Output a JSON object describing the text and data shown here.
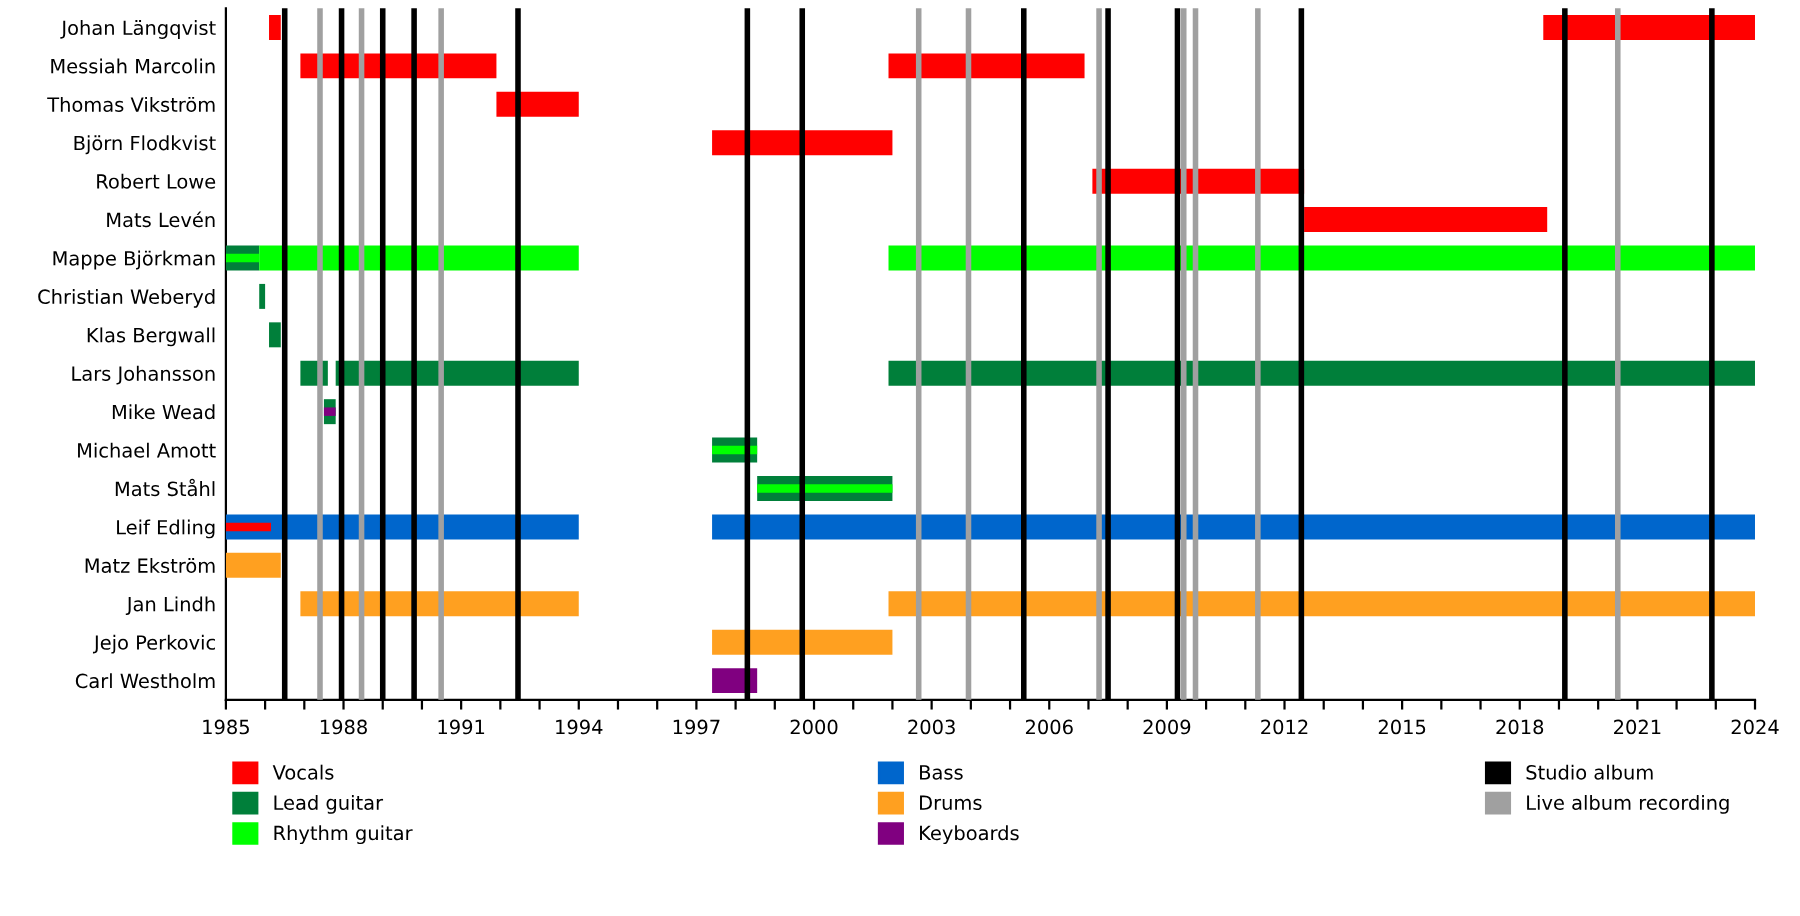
{
  "chart_data": {
    "type": "bar",
    "orientation": "horizontal",
    "categories": [
      "Johan Längqvist",
      "Messiah Marcolin",
      "Thomas Vikström",
      "Björn Flodkvist",
      "Robert Lowe",
      "Mats Levén",
      "Mappe Björkman",
      "Christian Weberyd",
      "Klas Bergwall",
      "Lars Johansson",
      "Mike Wead",
      "Michael Amott",
      "Mats Ståhl",
      "Leif Edling",
      "Matz Ekström",
      "Jan Lindh",
      "Jejo Perkovic",
      "Carl Westholm"
    ],
    "series": [
      {
        "name": "Vocals",
        "color": "#ff0000",
        "base": [
          1986.1,
          1986.9,
          1991.9,
          1997.4,
          2007.1,
          2012.5,
          null,
          null,
          null,
          null,
          null,
          null,
          null,
          null,
          null,
          null,
          null,
          null
        ],
        "values": [
          0.3,
          5.0,
          2.1,
          4.6,
          5.4,
          6.2,
          null,
          null,
          null,
          null,
          null,
          null,
          null,
          null,
          null,
          null,
          null,
          null
        ]
      },
      {
        "color": "#ff0000",
        "base": [
          2018.6,
          2001.9,
          null,
          null,
          null,
          null,
          null,
          null,
          null,
          null,
          null,
          null,
          null,
          null,
          null,
          null,
          null,
          null
        ],
        "values": [
          5.4,
          5.0,
          null,
          null,
          null,
          null,
          null,
          null,
          null,
          null,
          null,
          null,
          null,
          null,
          null,
          null,
          null,
          null
        ]
      },
      {
        "name": "Lead guitar",
        "color": "#007f3a",
        "base": [
          null,
          null,
          null,
          null,
          null,
          null,
          1985,
          1985.85,
          1986.1,
          1986.9,
          1987.5,
          1997.4,
          1998.55,
          null,
          null,
          null,
          null,
          null
        ],
        "values": [
          null,
          null,
          null,
          null,
          null,
          null,
          0.85,
          0.15,
          0.3,
          0.7,
          0.3,
          1.15,
          3.45,
          null,
          null,
          null,
          null,
          null
        ]
      },
      {
        "color": "#007f3a",
        "base": [
          null,
          null,
          null,
          null,
          null,
          null,
          null,
          null,
          null,
          1987.8,
          null,
          null,
          null,
          null,
          null,
          null,
          null,
          null
        ],
        "values": [
          null,
          null,
          null,
          null,
          null,
          null,
          null,
          null,
          null,
          6.2,
          null,
          null,
          null,
          null,
          null,
          null,
          null,
          null
        ]
      },
      {
        "color": "#007f3a",
        "base": [
          null,
          null,
          null,
          null,
          null,
          null,
          null,
          null,
          null,
          2001.9,
          null,
          null,
          null,
          null,
          null,
          null,
          null,
          null
        ],
        "values": [
          null,
          null,
          null,
          null,
          null,
          null,
          null,
          null,
          null,
          22.1,
          null,
          null,
          null,
          null,
          null,
          null,
          null,
          null
        ]
      },
      {
        "name": "Rhythm guitar",
        "color": "#00ff00",
        "base": [
          null,
          null,
          null,
          null,
          null,
          null,
          1985.85,
          null,
          null,
          null,
          null,
          1997.4,
          1998.55,
          null,
          null,
          null,
          null,
          null
        ],
        "values": [
          null,
          null,
          null,
          null,
          null,
          null,
          8.15,
          null,
          null,
          null,
          null,
          1.15,
          3.45,
          null,
          null,
          null,
          null,
          null
        ]
      },
      {
        "color": "#00ff00",
        "base": [
          null,
          null,
          null,
          null,
          null,
          null,
          2001.9,
          null,
          null,
          null,
          null,
          null,
          null,
          null,
          null,
          null,
          null,
          null
        ],
        "values": [
          null,
          null,
          null,
          null,
          null,
          null,
          22.1,
          null,
          null,
          null,
          null,
          null,
          null,
          null,
          null,
          null,
          null,
          null
        ]
      },
      {
        "color": "#00ff00",
        "base": [
          null,
          null,
          null,
          null,
          null,
          null,
          1985,
          null,
          null,
          null,
          null,
          null,
          null,
          null,
          null,
          null,
          null,
          null
        ],
        "values": [
          null,
          null,
          null,
          null,
          null,
          null,
          0.85,
          null,
          null,
          null,
          null,
          null,
          null,
          null,
          null,
          null,
          null,
          null
        ]
      },
      {
        "name": "Bass",
        "color": "#0066cc",
        "base": [
          null,
          null,
          null,
          null,
          null,
          null,
          null,
          null,
          null,
          null,
          null,
          null,
          null,
          1985,
          null,
          null,
          null,
          null
        ],
        "values": [
          null,
          null,
          null,
          null,
          null,
          null,
          null,
          null,
          null,
          null,
          null,
          null,
          null,
          9.0,
          null,
          null,
          null,
          null
        ]
      },
      {
        "color": "#0066cc",
        "base": [
          null,
          null,
          null,
          null,
          null,
          null,
          null,
          null,
          null,
          null,
          null,
          null,
          null,
          1997.4,
          null,
          null,
          null,
          null
        ],
        "values": [
          null,
          null,
          null,
          null,
          null,
          null,
          null,
          null,
          null,
          null,
          null,
          null,
          null,
          26.6,
          null,
          null,
          null,
          null
        ]
      },
      {
        "color": "#ff0000",
        "base": [
          null,
          null,
          null,
          null,
          null,
          null,
          null,
          null,
          null,
          null,
          null,
          null,
          null,
          1985,
          null,
          null,
          null,
          null
        ],
        "values": [
          null,
          null,
          null,
          null,
          null,
          null,
          null,
          null,
          null,
          null,
          null,
          null,
          null,
          1.15,
          null,
          null,
          null,
          null
        ]
      },
      {
        "name": "Drums",
        "color": "#ffa020",
        "base": [
          null,
          null,
          null,
          null,
          null,
          null,
          null,
          null,
          null,
          null,
          null,
          null,
          null,
          null,
          1985,
          1986.9,
          1997.4,
          null
        ],
        "values": [
          null,
          null,
          null,
          null,
          null,
          null,
          null,
          null,
          null,
          null,
          null,
          null,
          null,
          null,
          1.4,
          7.1,
          4.6,
          null
        ]
      },
      {
        "color": "#ffa020",
        "base": [
          null,
          null,
          null,
          null,
          null,
          null,
          null,
          null,
          null,
          null,
          null,
          null,
          null,
          null,
          null,
          2001.9,
          null,
          null
        ],
        "values": [
          null,
          null,
          null,
          null,
          null,
          null,
          null,
          null,
          null,
          null,
          null,
          null,
          null,
          null,
          null,
          22.1,
          null,
          null
        ]
      },
      {
        "name": "Keyboards",
        "color": "#800080",
        "base": [
          null,
          null,
          null,
          null,
          null,
          null,
          null,
          null,
          null,
          null,
          1987.5,
          null,
          null,
          null,
          null,
          null,
          null,
          1997.4
        ],
        "values": [
          null,
          null,
          null,
          null,
          null,
          null,
          null,
          null,
          null,
          null,
          0.3,
          null,
          null,
          null,
          null,
          null,
          null,
          1.15
        ]
      }
    ],
    "xlim": [
      1985,
      2024
    ],
    "xticks": [
      1985,
      {
        "value": 1986,
        "label": null
      },
      {
        "value": 1987,
        "label": null
      },
      1988,
      {
        "value": 1989,
        "label": null
      },
      {
        "value": 1990,
        "label": null
      },
      1991,
      {
        "value": 1992,
        "label": null
      },
      {
        "value": 1993,
        "label": null
      },
      1994,
      {
        "value": 1995,
        "label": null
      },
      {
        "value": 1996,
        "label": null
      },
      1997,
      {
        "value": 1998,
        "label": null
      },
      {
        "value": 1999,
        "label": null
      },
      2000,
      {
        "value": 2001,
        "label": null
      },
      {
        "value": 2002,
        "label": null
      },
      2003,
      {
        "value": 2004,
        "label": null
      },
      {
        "value": 2005,
        "label": null
      },
      2006,
      {
        "value": 2007,
        "label": null
      },
      {
        "value": 2008,
        "label": null
      },
      2009,
      {
        "value": 2010,
        "label": null
      },
      {
        "value": 2011,
        "label": null
      },
      2012,
      {
        "value": 2013,
        "label": null
      },
      {
        "value": 2014,
        "label": null
      },
      2015,
      {
        "value": 2016,
        "label": null
      },
      {
        "value": 2017,
        "label": null
      },
      2018,
      {
        "value": 2019,
        "label": null
      },
      {
        "value": 2020,
        "label": null
      },
      2021,
      {
        "value": 2022,
        "label": null
      },
      {
        "value": 2023,
        "label": null
      },
      2024
    ],
    "ref_lines": [
      {
        "axis": "x",
        "value": 1986.5,
        "label": "Studio album",
        "color": "#000000"
      },
      {
        "axis": "x",
        "value": 1987.95,
        "color": "#000000"
      },
      {
        "axis": "x",
        "value": 1989.0,
        "color": "#000000"
      },
      {
        "axis": "x",
        "value": 1989.8,
        "color": "#000000"
      },
      {
        "axis": "x",
        "value": 1992.45,
        "color": "#000000"
      },
      {
        "axis": "x",
        "value": 1998.3,
        "color": "#000000"
      },
      {
        "axis": "x",
        "value": 1999.7,
        "color": "#000000"
      },
      {
        "axis": "x",
        "value": 2005.35,
        "color": "#000000"
      },
      {
        "axis": "x",
        "value": 2007.5,
        "color": "#000000"
      },
      {
        "axis": "x",
        "value": 2009.27,
        "color": "#000000"
      },
      {
        "axis": "x",
        "value": 2012.43,
        "color": "#000000"
      },
      {
        "axis": "x",
        "value": 2019.15,
        "color": "#000000"
      },
      {
        "axis": "x",
        "value": 2022.9,
        "color": "#000000"
      },
      {
        "axis": "x",
        "value": 1987.4,
        "label": "Live album recording",
        "color": "#a0a0a0"
      },
      {
        "axis": "x",
        "value": 1988.46,
        "color": "#a0a0a0"
      },
      {
        "axis": "x",
        "value": 1990.49,
        "color": "#a0a0a0"
      },
      {
        "axis": "x",
        "value": 2002.67,
        "color": "#a0a0a0"
      },
      {
        "axis": "x",
        "value": 2003.94,
        "color": "#a0a0a0"
      },
      {
        "axis": "x",
        "value": 2007.27,
        "color": "#a0a0a0"
      },
      {
        "axis": "x",
        "value": 2009.43,
        "color": "#a0a0a0"
      },
      {
        "axis": "x",
        "value": 2009.73,
        "color": "#a0a0a0"
      },
      {
        "axis": "x",
        "value": 2011.32,
        "color": "#a0a0a0"
      },
      {
        "axis": "x",
        "value": 2020.5,
        "color": "#a0a0a0"
      }
    ],
    "grid": false,
    "legend": "bottom"
  }
}
